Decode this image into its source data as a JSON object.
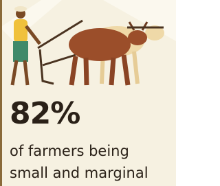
{
  "stat": {
    "value": "82%",
    "caption": [
      "of farmers being",
      "small and marginal"
    ]
  }
}
